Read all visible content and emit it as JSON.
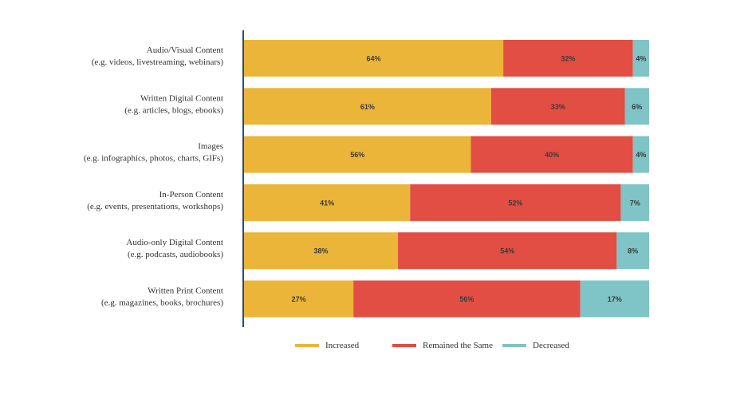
{
  "chart_data": {
    "type": "bar",
    "orientation": "horizontal",
    "stacked": true,
    "title": "",
    "xlabel": "",
    "ylabel": "",
    "xlim": [
      0,
      100
    ],
    "grid": false,
    "legend_position": "bottom",
    "categories": [
      [
        "Audio/Visual Content",
        "(e.g. videos, livestreaming, webinars)"
      ],
      [
        "Written Digital Content",
        "(e.g. articles, blogs, ebooks)"
      ],
      [
        "Images",
        "(e.g. infographics, photos, charts, GIFs)"
      ],
      [
        "In-Person Content",
        "(e.g. events, presentations, workshops)"
      ],
      [
        "Audio-only Digital Content",
        "(e.g. podcasts, audiobooks)"
      ],
      [
        "Written Print Content",
        "(e.g. magazines, books, brochures)"
      ]
    ],
    "series": [
      {
        "name": "Increased",
        "color": "#EBB53A",
        "values": [
          64,
          61,
          56,
          41,
          38,
          27
        ]
      },
      {
        "name": "Remained the Same",
        "color": "#E24E43",
        "values": [
          32,
          33,
          40,
          52,
          54,
          56
        ]
      },
      {
        "name": "Decreased",
        "color": "#7FC4C6",
        "values": [
          4,
          6,
          4,
          7,
          8,
          17
        ]
      }
    ],
    "value_suffix": "%"
  }
}
